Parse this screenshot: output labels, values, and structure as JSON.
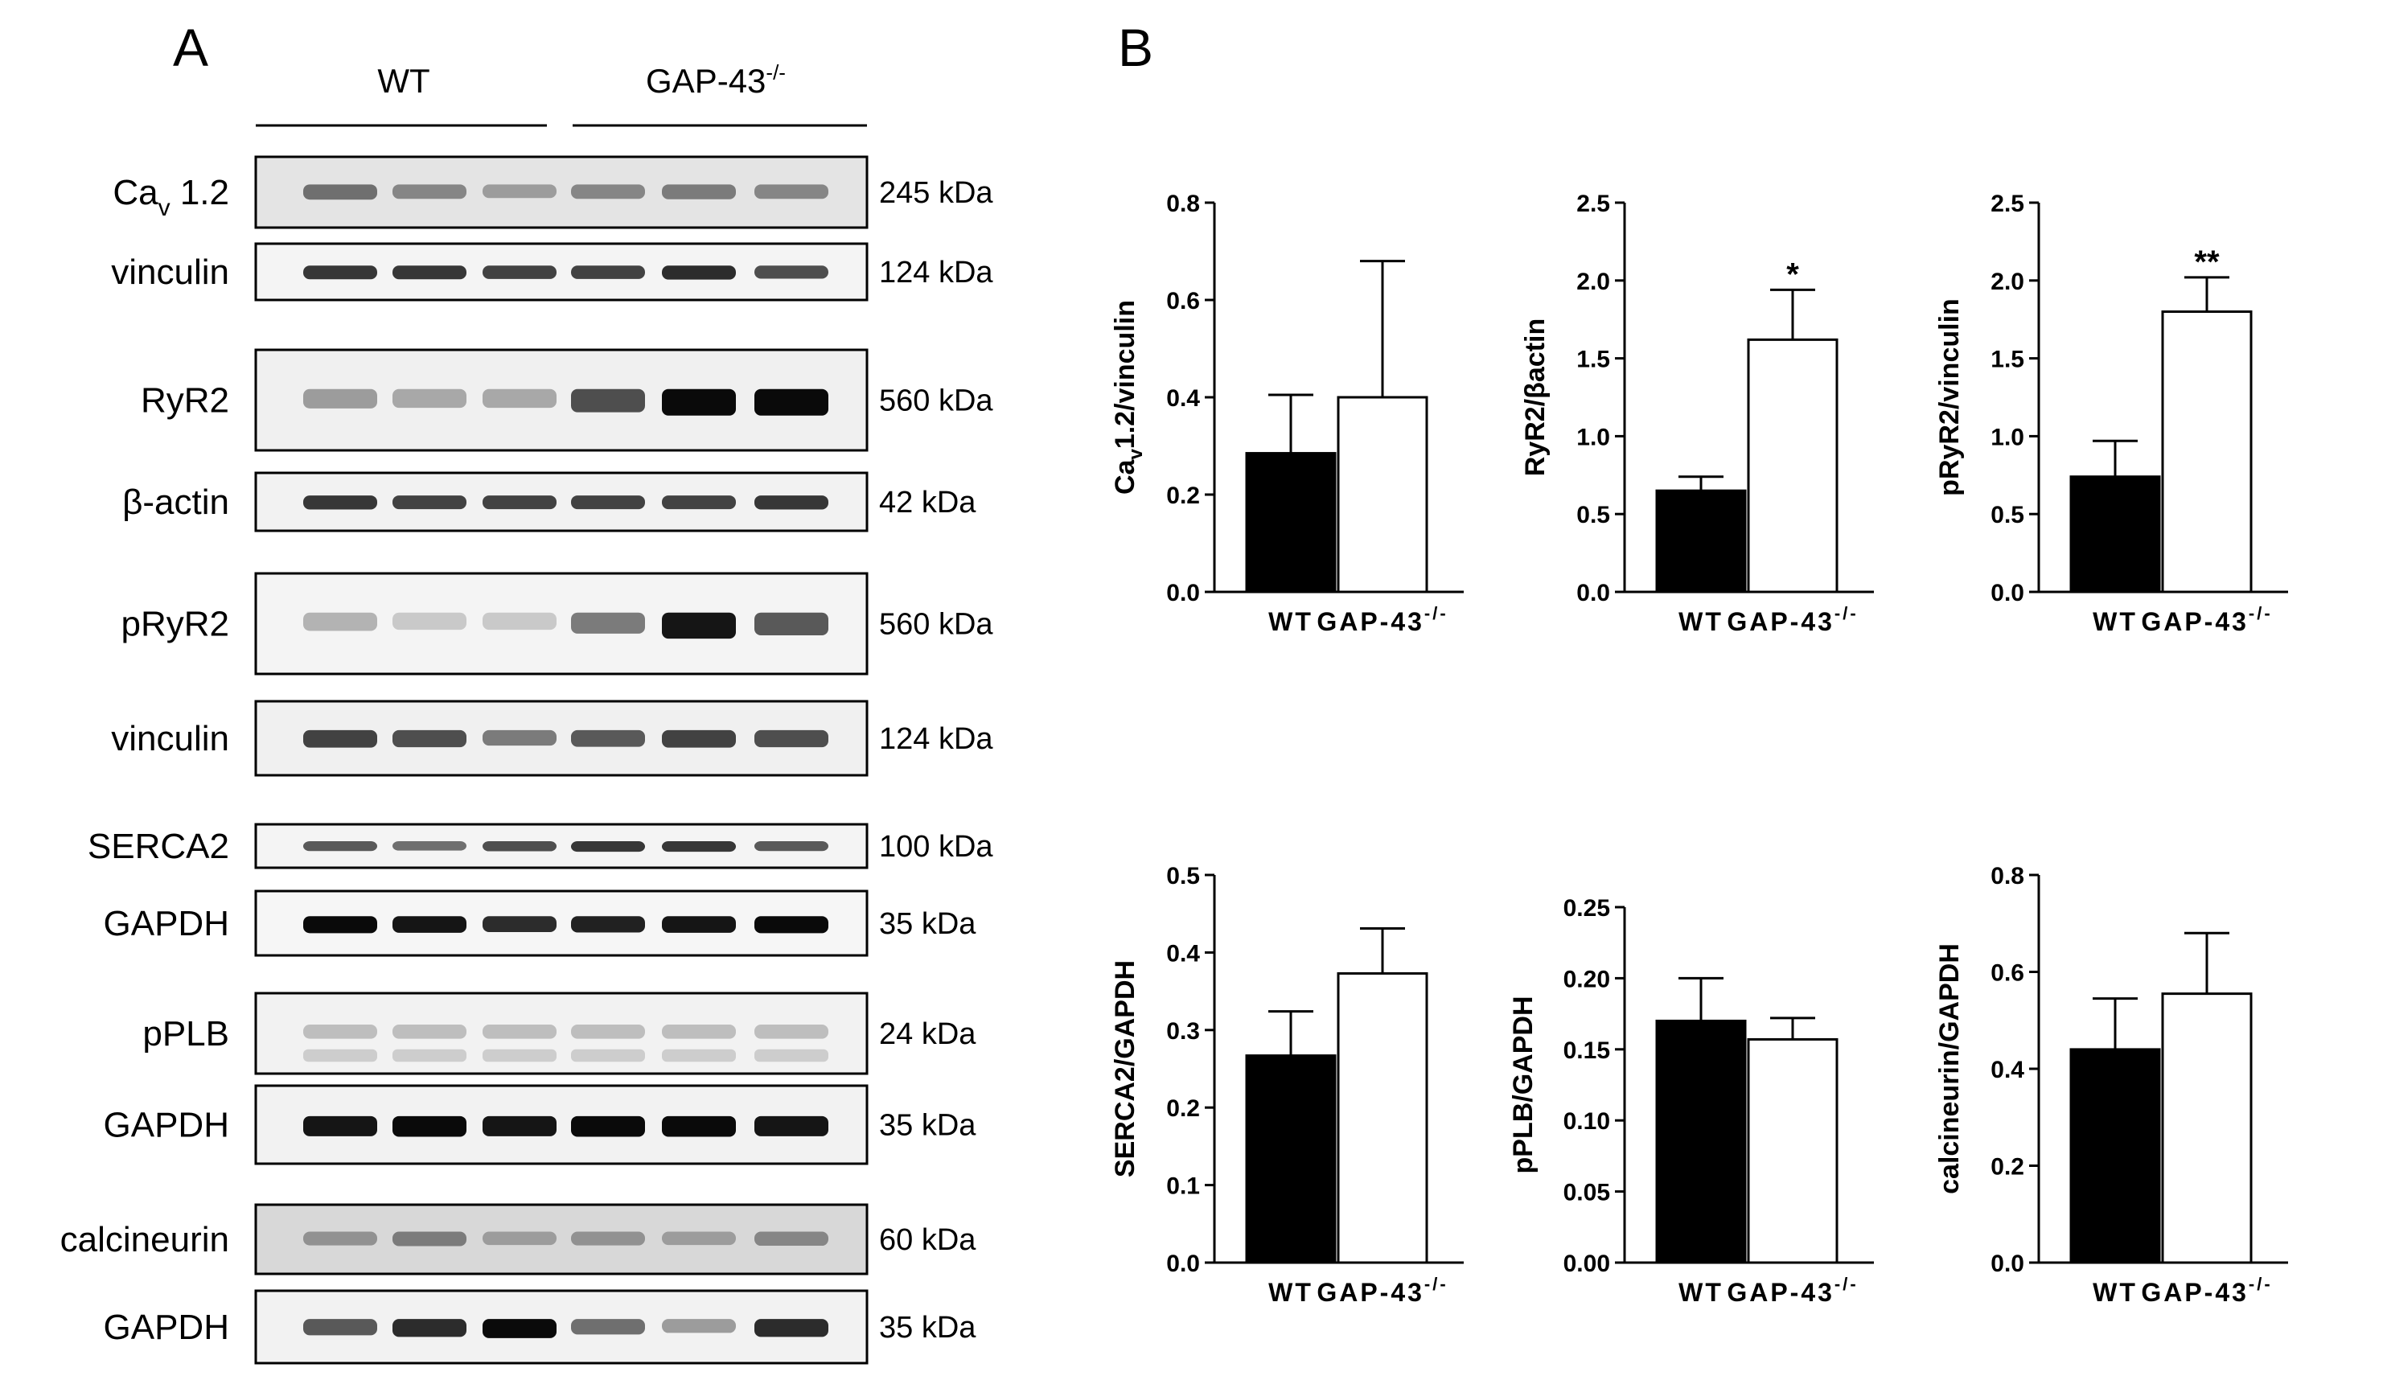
{
  "panels": {
    "a": "A",
    "b": "B"
  },
  "western_blot": {
    "groups": [
      {
        "label": "WT",
        "sup": ""
      },
      {
        "label": "GAP-43",
        "sup": "-/-"
      }
    ],
    "blots": [
      {
        "label": "Ca",
        "sub": "v",
        "label2": " 1.2",
        "kda": "245 kDa",
        "intensities": [
          0.55,
          0.45,
          0.35,
          0.45,
          0.5,
          0.45
        ],
        "bg": "#e4e4e4",
        "tall": false
      },
      {
        "label": "vinculin",
        "kda": "124 kDa",
        "intensities": [
          0.8,
          0.8,
          0.75,
          0.75,
          0.85,
          0.7
        ],
        "bg": "#f4f4f4",
        "tall": false
      },
      {
        "label": "RyR2",
        "kda": "560 kDa",
        "intensities": [
          0.35,
          0.3,
          0.3,
          0.7,
          1.0,
          1.0
        ],
        "bg": "#f0f0f0",
        "tall": true
      },
      {
        "label": "β-actin",
        "kda": "42 kDa",
        "intensities": [
          0.8,
          0.75,
          0.75,
          0.75,
          0.75,
          0.8
        ],
        "bg": "#f2f2f2",
        "tall": false
      },
      {
        "label": "pRyR2",
        "kda": "560 kDa",
        "intensities": [
          0.25,
          0.15,
          0.15,
          0.5,
          0.95,
          0.65
        ],
        "bg": "#f4f4f4",
        "tall": true
      },
      {
        "label": "vinculin",
        "kda": "124 kDa",
        "intensities": [
          0.75,
          0.7,
          0.5,
          0.65,
          0.75,
          0.7
        ],
        "bg": "#f0f0f0",
        "tall": false
      },
      {
        "label": "SERCA2",
        "kda": "100 kDa",
        "intensities": [
          0.65,
          0.55,
          0.7,
          0.8,
          0.8,
          0.65
        ],
        "bg": "#f4f4f4",
        "tall": false
      },
      {
        "label": "GAPDH",
        "kda": "35 kDa",
        "intensities": [
          1.0,
          0.95,
          0.85,
          0.9,
          0.95,
          1.0
        ],
        "bg": "#f6f6f6",
        "tall": false
      },
      {
        "label": "pPLB",
        "kda": "24 kDa",
        "intensities": [
          0.2,
          0.2,
          0.2,
          0.2,
          0.2,
          0.2
        ],
        "bg": "#f2f2f2",
        "tall": false
      },
      {
        "label": "GAPDH",
        "kda": "35 kDa",
        "intensities": [
          0.95,
          1.0,
          0.95,
          1.0,
          1.0,
          0.95
        ],
        "bg": "#f2f2f2",
        "tall": false
      },
      {
        "label": "calcineurin",
        "kda": "60 kDa",
        "intensities": [
          0.4,
          0.5,
          0.35,
          0.4,
          0.35,
          0.45
        ],
        "bg": "#d8d8d8",
        "tall": false
      },
      {
        "label": "GAPDH",
        "kda": "35 kDa",
        "intensities": [
          0.65,
          0.85,
          1.0,
          0.55,
          0.35,
          0.85
        ],
        "bg": "#f2f2f2",
        "tall": false
      }
    ]
  },
  "chart_data": [
    {
      "type": "bar",
      "categories": [
        "WT",
        "GAP-43-/-"
      ],
      "cat_sup": [
        "",
        "-/-"
      ],
      "cat_base": [
        "WT",
        "GAP-43"
      ],
      "values": [
        0.285,
        0.4
      ],
      "errors": [
        0.12,
        0.28
      ],
      "ylabel": "Cav1.2/vinculin",
      "ylabel_base": "Ca",
      "ylabel_sub": "v",
      "ylabel_rest": "1.2/vinculin",
      "ylim": [
        0,
        0.8
      ],
      "yticks": [
        "0.0",
        "0.2",
        "0.4",
        "0.6",
        "0.8"
      ],
      "significance": [
        "",
        ""
      ],
      "fills": [
        "#000000",
        "#ffffff"
      ]
    },
    {
      "type": "bar",
      "categories": [
        "WT",
        "GAP-43-/-"
      ],
      "cat_sup": [
        "",
        "-/-"
      ],
      "cat_base": [
        "WT",
        "GAP-43"
      ],
      "values": [
        0.65,
        1.62
      ],
      "errors": [
        0.09,
        0.32
      ],
      "ylabel": "RyR2/β-actin",
      "ylabel_base": "RyR2/",
      "ylabel_sub": "",
      "ylabel_rest": "βactin",
      "ylim": [
        0,
        2.5
      ],
      "yticks": [
        "0.0",
        "0.5",
        "1.0",
        "1.5",
        "2.0",
        "2.5"
      ],
      "significance": [
        "",
        "*"
      ],
      "fills": [
        "#000000",
        "#ffffff"
      ]
    },
    {
      "type": "bar",
      "categories": [
        "WT",
        "GAP-43-/-"
      ],
      "cat_sup": [
        "",
        "-/-"
      ],
      "cat_base": [
        "WT",
        "GAP-43"
      ],
      "values": [
        0.74,
        1.8
      ],
      "errors": [
        0.23,
        0.22
      ],
      "ylabel": "pRyR2/vinculin",
      "ylabel_base": "pRyR2/vinculin",
      "ylabel_sub": "",
      "ylabel_rest": "",
      "ylim": [
        0,
        2.5
      ],
      "yticks": [
        "0.0",
        "0.5",
        "1.0",
        "1.5",
        "2.0",
        "2.5"
      ],
      "significance": [
        "",
        "**"
      ],
      "fills": [
        "#000000",
        "#ffffff"
      ]
    },
    {
      "type": "bar",
      "categories": [
        "WT",
        "GAP-43-/-"
      ],
      "cat_sup": [
        "",
        "-/-"
      ],
      "cat_base": [
        "WT",
        "GAP-43"
      ],
      "values": [
        0.267,
        0.373
      ],
      "errors": [
        0.057,
        0.058
      ],
      "ylabel": "SERCA2/GAPDH",
      "ylabel_base": "SERCA2/GAPDH",
      "ylabel_sub": "",
      "ylabel_rest": "",
      "ylim": [
        0,
        0.5
      ],
      "yticks": [
        "0.0",
        "0.1",
        "0.2",
        "0.3",
        "0.4",
        "0.5"
      ],
      "significance": [
        "",
        ""
      ],
      "fills": [
        "#000000",
        "#ffffff"
      ]
    },
    {
      "type": "bar",
      "categories": [
        "WT",
        "GAP-43-/-"
      ],
      "cat_sup": [
        "",
        "-/-"
      ],
      "cat_base": [
        "WT",
        "GAP-43"
      ],
      "values": [
        0.17,
        0.157
      ],
      "errors": [
        0.03,
        0.015
      ],
      "ylabel": "pPLB/GAPDH",
      "ylabel_base": "pPLB/GAPDH",
      "ylabel_sub": "",
      "ylabel_rest": "",
      "ylim": [
        0,
        0.25
      ],
      "yticks": [
        "0.00",
        "0.05",
        "0.10",
        "0.15",
        "0.20",
        "0.25"
      ],
      "significance": [
        "",
        ""
      ],
      "fills": [
        "#000000",
        "#ffffff"
      ]
    },
    {
      "type": "bar",
      "categories": [
        "WT",
        "GAP-43-/-"
      ],
      "cat_sup": [
        "",
        "-/-"
      ],
      "cat_base": [
        "WT",
        "GAP-43"
      ],
      "values": [
        0.44,
        0.555
      ],
      "errors": [
        0.105,
        0.125
      ],
      "ylabel": "calcineurin/GAPDH",
      "ylabel_base": "calcineurin/GAPDH",
      "ylabel_sub": "",
      "ylabel_rest": "",
      "ylim": [
        0,
        0.8
      ],
      "yticks": [
        "0.0",
        "0.2",
        "0.4",
        "0.6",
        "0.8"
      ],
      "significance": [
        "",
        ""
      ],
      "fills": [
        "#000000",
        "#ffffff"
      ]
    }
  ]
}
